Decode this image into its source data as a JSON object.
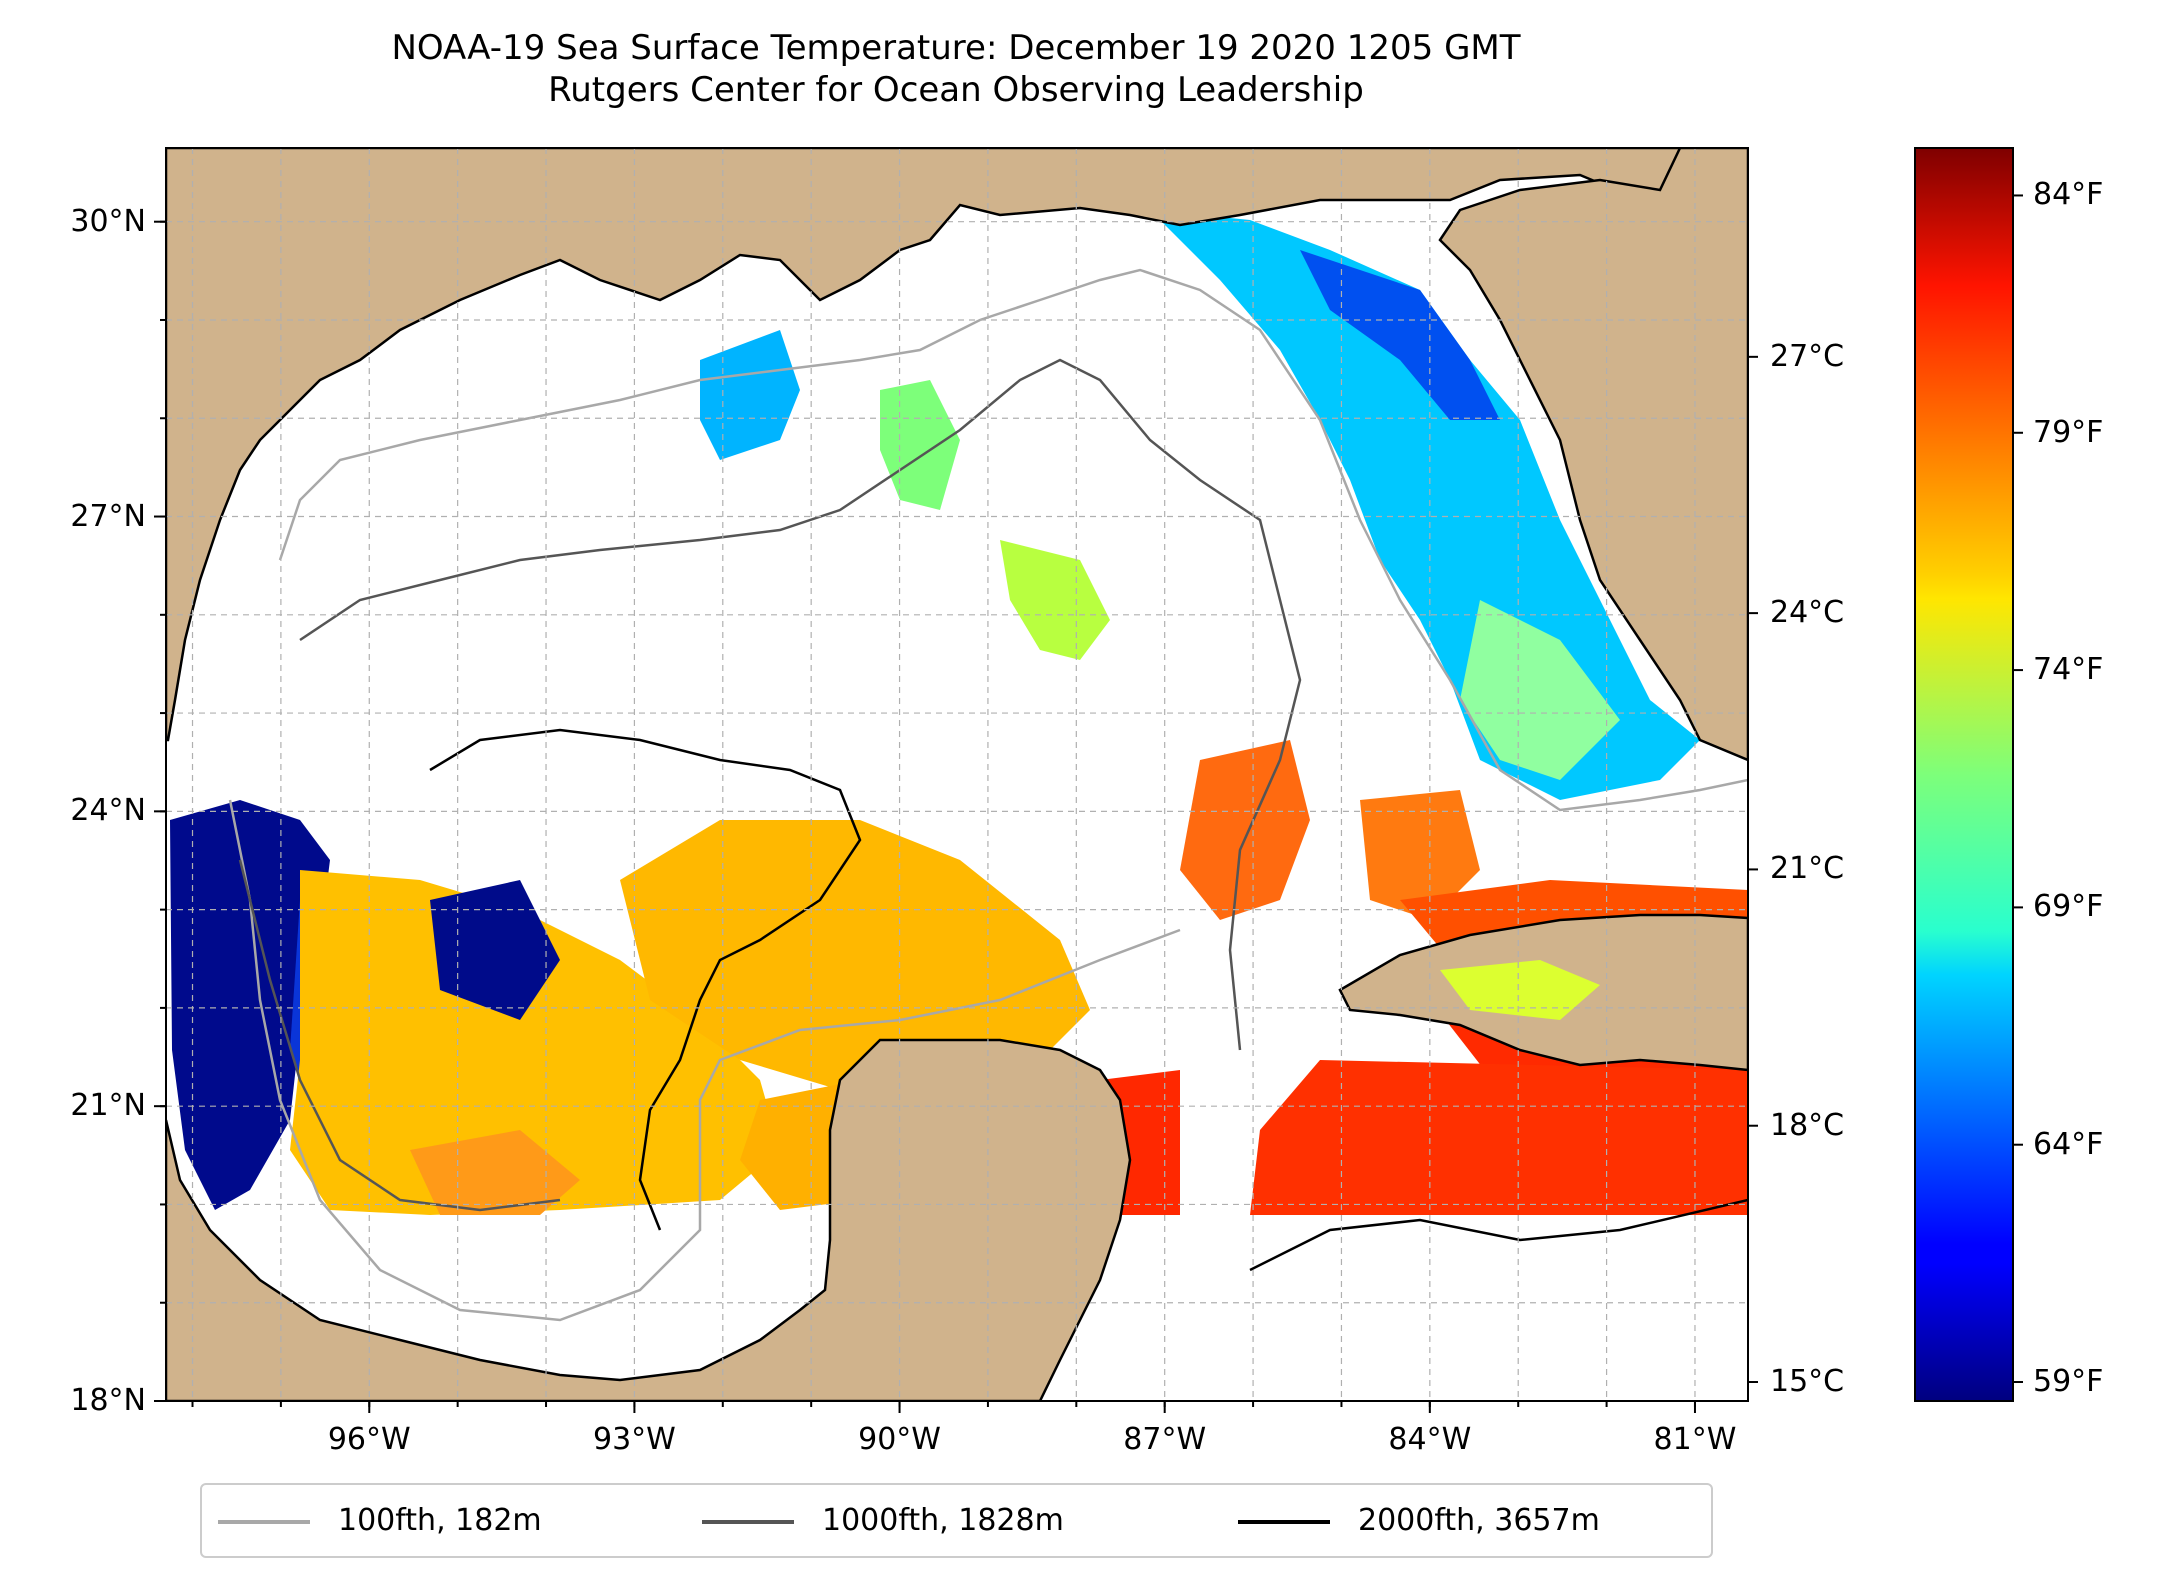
{
  "title": {
    "line1": "NOAA-19 Sea Surface Temperature: December 19 2020 1205 GMT",
    "line2": "Rutgers Center for Ocean Observing Leadership"
  },
  "map": {
    "extent": {
      "lon_min": -98.3,
      "lon_max": -80.4,
      "lat_min": 18.0,
      "lat_max": 30.75
    },
    "land_color": "#d0b38c",
    "gridlines": true,
    "lat_ticks": [
      {
        "value": 30,
        "label": "30°N"
      },
      {
        "value": 27,
        "label": "27°N"
      },
      {
        "value": 24,
        "label": "24°N"
      },
      {
        "value": 21,
        "label": "21°N"
      },
      {
        "value": 18,
        "label": "18°N"
      }
    ],
    "lon_ticks": [
      {
        "value": -96,
        "label": "96°W"
      },
      {
        "value": -93,
        "label": "93°W"
      },
      {
        "value": -90,
        "label": "90°W"
      },
      {
        "value": -87,
        "label": "87°W"
      },
      {
        "value": -84,
        "label": "84°W"
      },
      {
        "value": -81,
        "label": "81°W"
      }
    ]
  },
  "colorbar": {
    "colormap": "jet",
    "min_f": 58.6,
    "max_f": 85.0,
    "f_ticks": [
      {
        "value": 59,
        "label": "59°F"
      },
      {
        "value": 64,
        "label": "64°F"
      },
      {
        "value": 69,
        "label": "69°F"
      },
      {
        "value": 74,
        "label": "74°F"
      },
      {
        "value": 79,
        "label": "79°F"
      },
      {
        "value": 84,
        "label": "84°F"
      }
    ],
    "c_ticks": [
      {
        "value": 15,
        "label": "15°C"
      },
      {
        "value": 18,
        "label": "18°C"
      },
      {
        "value": 21,
        "label": "21°C"
      },
      {
        "value": 24,
        "label": "24°C"
      },
      {
        "value": 27,
        "label": "27°C"
      }
    ]
  },
  "legend": {
    "position": "bottom-center",
    "entries": [
      {
        "label": "100fth, 182m",
        "color": "#a8a8a8"
      },
      {
        "label": "1000fth, 1828m",
        "color": "#555555"
      },
      {
        "label": "2000fth, 3657m",
        "color": "#000000"
      }
    ]
  }
}
